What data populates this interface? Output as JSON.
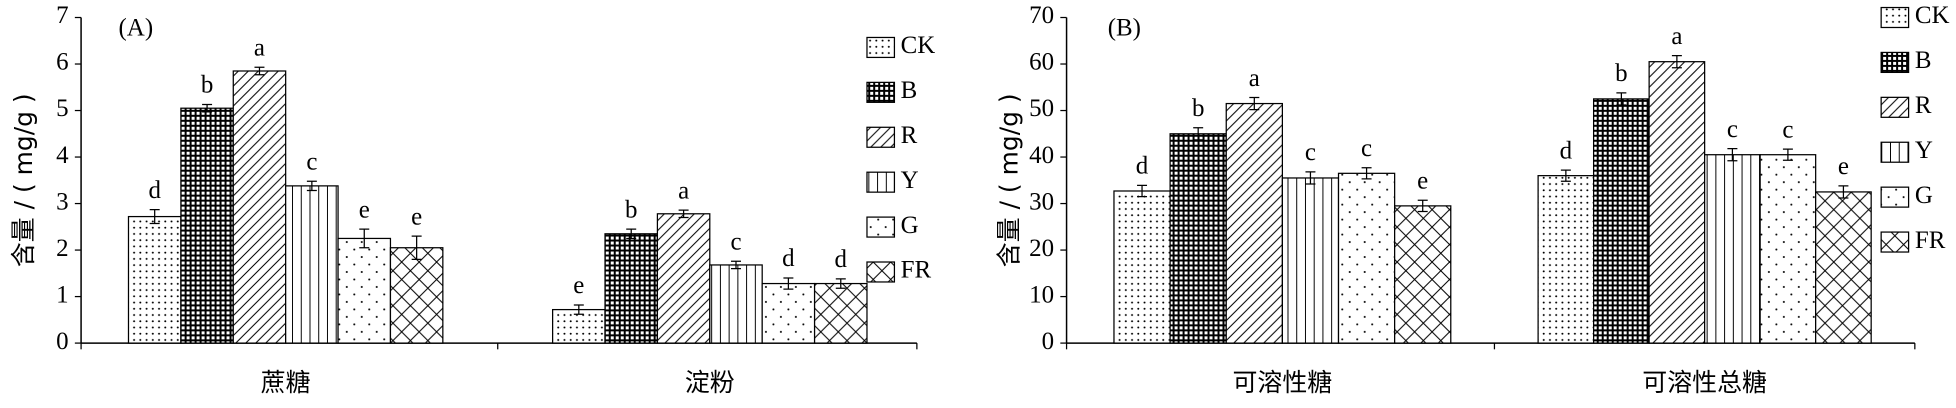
{
  "chart_data": [
    {
      "type": "bar",
      "title": "(A)",
      "ylabel": "含量 / ( mg/g )",
      "categories": [
        "蔗糖",
        "淀粉"
      ],
      "ylim": [
        0,
        7
      ],
      "yticks": [
        0,
        1,
        2,
        3,
        4,
        5,
        6,
        7
      ],
      "series": [
        {
          "name": "CK",
          "color": "#000000",
          "pattern": "dots",
          "values": [
            2.72,
            0.72
          ],
          "errors": [
            0.15,
            0.1
          ],
          "labels": [
            "d",
            "e"
          ]
        },
        {
          "name": "B",
          "color": "#000000",
          "pattern": "grid",
          "values": [
            5.05,
            2.35
          ],
          "errors": [
            0.08,
            0.1
          ],
          "labels": [
            "b",
            "b"
          ]
        },
        {
          "name": "R",
          "color": "#000000",
          "pattern": "diag",
          "values": [
            5.85,
            2.78
          ],
          "errors": [
            0.08,
            0.08
          ],
          "labels": [
            "a",
            "a"
          ]
        },
        {
          "name": "Y",
          "color": "#000000",
          "pattern": "vert",
          "values": [
            3.38,
            1.68
          ],
          "errors": [
            0.1,
            0.08
          ],
          "labels": [
            "c",
            "c"
          ]
        },
        {
          "name": "G",
          "color": "#000000",
          "pattern": "sparse",
          "values": [
            2.25,
            1.28
          ],
          "errors": [
            0.2,
            0.12
          ],
          "labels": [
            "e",
            "d"
          ]
        },
        {
          "name": "FR",
          "color": "#000000",
          "pattern": "cross",
          "values": [
            2.05,
            1.28
          ],
          "errors": [
            0.25,
            0.1
          ],
          "labels": [
            "e",
            "d"
          ]
        }
      ]
    },
    {
      "type": "bar",
      "title": "(B)",
      "ylabel": "含量 / ( mg/g )",
      "categories": [
        "可溶性糖",
        "可溶性总糖"
      ],
      "ylim": [
        0,
        70
      ],
      "yticks": [
        0,
        10,
        20,
        30,
        40,
        50,
        60,
        70
      ],
      "series": [
        {
          "name": "CK",
          "color": "#000000",
          "pattern": "dots",
          "values": [
            32.7,
            36
          ],
          "errors": [
            1.2,
            1.2
          ],
          "labels": [
            "d",
            "d"
          ]
        },
        {
          "name": "B",
          "color": "#000000",
          "pattern": "grid",
          "values": [
            45,
            52.5
          ],
          "errors": [
            1.3,
            1.3
          ],
          "labels": [
            "b",
            "b"
          ]
        },
        {
          "name": "R",
          "color": "#000000",
          "pattern": "diag",
          "values": [
            51.5,
            60.5
          ],
          "errors": [
            1.3,
            1.3
          ],
          "labels": [
            "a",
            "a"
          ]
        },
        {
          "name": "Y",
          "color": "#000000",
          "pattern": "vert",
          "values": [
            35.5,
            40.5
          ],
          "errors": [
            1.3,
            1.3
          ],
          "labels": [
            "c",
            "c"
          ]
        },
        {
          "name": "G",
          "color": "#000000",
          "pattern": "sparse",
          "values": [
            36.5,
            40.5
          ],
          "errors": [
            1.2,
            1.2
          ],
          "labels": [
            "c",
            "c"
          ]
        },
        {
          "name": "FR",
          "color": "#000000",
          "pattern": "cross",
          "values": [
            29.5,
            32.5
          ],
          "errors": [
            1.2,
            1.3
          ],
          "labels": [
            "e",
            "e"
          ]
        }
      ]
    }
  ]
}
